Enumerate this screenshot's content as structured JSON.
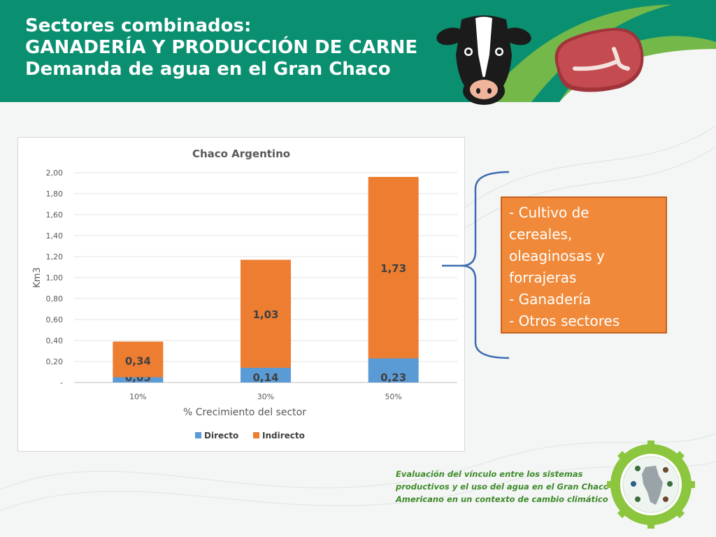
{
  "header": {
    "line1": "Sectores combinados:",
    "line2": "GANADERÍA Y PRODUCCIÓN DE CARNE",
    "line3": "Demanda de agua en el Gran Chaco"
  },
  "colors": {
    "header_green": "#0a9070",
    "accent_green": "#74b84a",
    "directo": "#5b9bd5",
    "indirecto": "#ed7d31",
    "callout_bg": "#f08a3a",
    "brace_blue": "#3d6cb0",
    "footer_green": "#3f8a2b"
  },
  "icons": [
    "cow-head-icon",
    "steak-icon",
    "chaco-map-badge-icon"
  ],
  "chart_data": {
    "type": "bar",
    "stacked": true,
    "title": "Chaco Argentino",
    "xlabel": "% Crecimiento del sector",
    "ylabel": "Km3",
    "categories": [
      "10%",
      "30%",
      "50%"
    ],
    "series": [
      {
        "name": "Directo",
        "values": [
          0.05,
          0.14,
          0.23
        ],
        "labels": [
          "0,05",
          "0,14",
          "0,23"
        ]
      },
      {
        "name": "Indirecto",
        "values": [
          0.34,
          1.03,
          1.73
        ],
        "labels": [
          "0,34",
          "1,03",
          "1,73"
        ]
      }
    ],
    "ylim": [
      0,
      2.0
    ],
    "yticks": [
      0,
      0.2,
      0.4,
      0.6,
      0.8,
      1.0,
      1.2,
      1.4,
      1.6,
      1.8,
      2.0
    ],
    "ytick_labels": [
      "-",
      "0,20",
      "0,40",
      "0,60",
      "0,80",
      "1,00",
      "1,20",
      "1,40",
      "1,60",
      "1,80",
      "2,00"
    ],
    "grid": true,
    "legend": "bottom"
  },
  "callout": {
    "lines": [
      "- Cultivo de",
      "cereales,",
      "oleaginosas y",
      "forrajeras",
      "- Ganadería",
      "- Otros sectores"
    ]
  },
  "footer": {
    "lines": [
      "Evaluación del vínculo entre los sistemas",
      "productivos y el uso del agua en el Gran Chaco",
      "Americano en un contexto de cambio climático"
    ]
  }
}
